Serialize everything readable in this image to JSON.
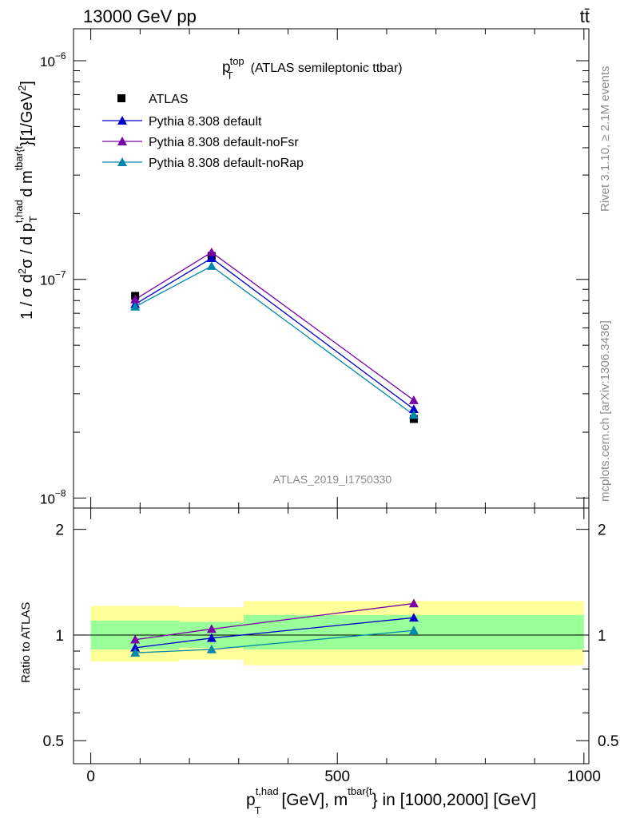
{
  "header": {
    "process": "13000 GeV pp",
    "topright": "tt̄"
  },
  "side_labels": {
    "rivet": "Rivet 3.1.10, ≥ 2.1M events",
    "mcplots": "mcplots.cern.ch [arXiv:1306.3436]"
  },
  "chart_data": [
    {
      "type": "line",
      "title": "p_T^top (ATLAS semileptonic ttbar)",
      "title_parts": {
        "p": "p",
        "sup": "top",
        "sub": "T",
        "rest": "(ATLAS semileptonic ttbar)"
      },
      "watermark": "ATLAS_2019_I1750330",
      "ylabel_parts": {
        "lead": "1 / σ d",
        "sup2": "2",
        "mid": "σ / d p",
        "sup_thad": "t,had",
        "sub_T": "T",
        "d_m": " d m",
        "sup_tbar": "tbar{t",
        "tail": "}[1/GeV",
        "unit_sup": "2",
        "close": "]"
      },
      "yscale": "log",
      "ylim": [
        9e-09,
        1.4e-06
      ],
      "xlim": [
        -35,
        1010
      ],
      "ytick_labels": [
        {
          "value": 1e-08,
          "base": "10",
          "exp": "−8"
        },
        {
          "value": 1e-07,
          "base": "10",
          "exp": "−7"
        },
        {
          "value": 1e-06,
          "base": "10",
          "exp": "−6"
        }
      ],
      "legend_position": "top-left",
      "series": [
        {
          "name": "ATLAS",
          "marker": "square",
          "color": "#000000",
          "x": [
            90,
            245,
            655
          ],
          "y": [
            8.4e-08,
            1.28e-07,
            2.3e-08
          ]
        },
        {
          "name": "Pythia 8.308 default",
          "marker": "triangle",
          "color": "#0000cc",
          "x": [
            90,
            245,
            655
          ],
          "y": [
            7.7e-08,
            1.25e-07,
            2.55e-08
          ]
        },
        {
          "name": "Pythia 8.308 default-noFsr",
          "marker": "triangle",
          "color": "#7a00a8",
          "x": [
            90,
            245,
            655
          ],
          "y": [
            8.1e-08,
            1.33e-07,
            2.8e-08
          ]
        },
        {
          "name": "Pythia 8.308 default-noRap",
          "marker": "triangle",
          "color": "#0088aa",
          "x": [
            90,
            245,
            655
          ],
          "y": [
            7.5e-08,
            1.15e-07,
            2.4e-08
          ]
        }
      ]
    },
    {
      "type": "line",
      "ylabel": "Ratio to ATLAS",
      "yscale": "log",
      "ylim": [
        0.43,
        2.3
      ],
      "xlim": [
        -35,
        1010
      ],
      "ytick_labels": [
        {
          "value": 0.5,
          "label": "0.5"
        },
        {
          "value": 1,
          "label": "1"
        },
        {
          "value": 2,
          "label": "2"
        }
      ],
      "xtick_labels": [
        {
          "value": 0,
          "label": "0"
        },
        {
          "value": 500,
          "label": "500"
        },
        {
          "value": 1000,
          "label": "1000"
        }
      ],
      "xlabel_parts": {
        "p": "p",
        "sup_thad": "t,had",
        "sub_T": "T",
        "mid": " [GeV], m",
        "sup_tbar": "tbar{t",
        "tail": "} in [1000,2000] [GeV]"
      },
      "bands": [
        {
          "x0": 0,
          "x1": 180,
          "yellow": [
            0.84,
            1.21
          ],
          "green": [
            0.91,
            1.1
          ]
        },
        {
          "x0": 180,
          "x1": 310,
          "yellow": [
            0.85,
            1.2
          ],
          "green": [
            0.92,
            1.09
          ]
        },
        {
          "x0": 310,
          "x1": 1000,
          "yellow": [
            0.82,
            1.25
          ],
          "green": [
            0.91,
            1.14
          ]
        }
      ],
      "series": [
        {
          "name": "Pythia 8.308 default",
          "color": "#0000cc",
          "x": [
            90,
            245,
            655
          ],
          "y": [
            0.92,
            0.98,
            1.12
          ]
        },
        {
          "name": "Pythia 8.308 default-noFsr",
          "color": "#7a00a8",
          "x": [
            90,
            245,
            655
          ],
          "y": [
            0.97,
            1.04,
            1.23
          ]
        },
        {
          "name": "Pythia 8.308 default-noRap",
          "color": "#0088aa",
          "x": [
            90,
            245,
            655
          ],
          "y": [
            0.89,
            0.91,
            1.03
          ]
        }
      ]
    }
  ]
}
